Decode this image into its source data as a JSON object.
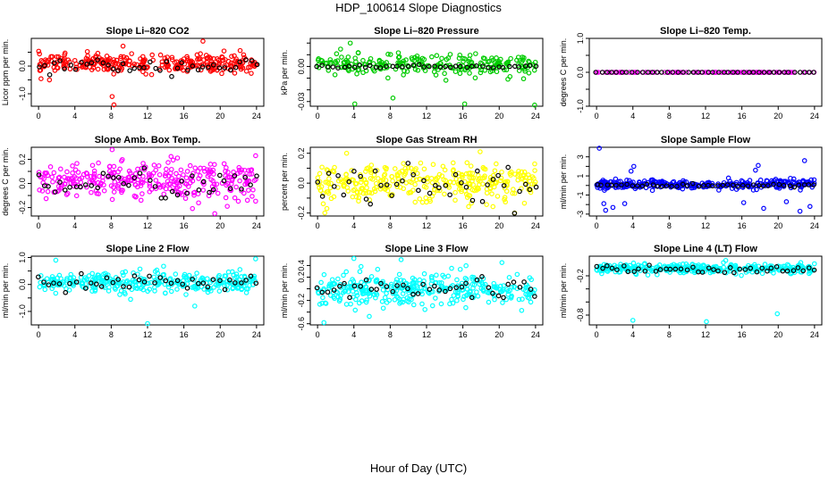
{
  "figure": {
    "title": "HDP_100614  Slope Diagnostics",
    "xlabel": "Hour of Day (UTC)"
  },
  "chart_data": [
    {
      "type": "scatter",
      "title": "Slope Li–820 CO2",
      "ylabel": "Licor ppm per min.",
      "xlim": [
        0,
        24
      ],
      "x_ticks": [
        0,
        4,
        8,
        12,
        16,
        20,
        24
      ],
      "ylim": [
        -1.45,
        1.0
      ],
      "y_ticks": [
        -1.5,
        -1.0,
        -0.5,
        0.0,
        0.5
      ],
      "y_tick_labels": [
        "",
        "-1.0",
        "",
        "0.0",
        ""
      ],
      "series": [
        {
          "name": "all",
          "color": "#ff0000",
          "center": 0.1,
          "spread": 0.16,
          "count": 300,
          "outliers": [
            [
              8.1,
              -1.1
            ],
            [
              8.3,
              -1.4
            ],
            [
              9.3,
              0.72
            ],
            [
              18.1,
              0.9
            ],
            [
              1.2,
              -0.5
            ]
          ]
        },
        {
          "name": "hourly",
          "color": "#000000",
          "center": 0.0,
          "spread": 0.13,
          "count": 42
        }
      ]
    },
    {
      "type": "scatter",
      "title": "Slope Li–820 Pressure",
      "ylabel": "kPa per min.",
      "xlim": [
        0,
        24
      ],
      "x_ticks": [
        0,
        4,
        8,
        12,
        16,
        20,
        24
      ],
      "ylim": [
        -0.034,
        0.024
      ],
      "y_ticks": [
        -0.03,
        -0.02,
        -0.01,
        0.0,
        0.01,
        0.02
      ],
      "y_tick_labels": [
        "-0.03",
        "",
        "",
        "0.00",
        "",
        ""
      ],
      "series": [
        {
          "name": "all",
          "color": "#00cc00",
          "center": 0.001,
          "spread": 0.0045,
          "count": 240,
          "outliers": [
            [
              4.1,
              -0.032
            ],
            [
              8.3,
              -0.027
            ],
            [
              16.2,
              -0.032
            ],
            [
              23.9,
              -0.033
            ],
            [
              3.6,
              0.02
            ]
          ]
        },
        {
          "name": "hourly",
          "color": "#000000",
          "center": 0.0,
          "spread": 0.0007,
          "count": 42
        }
      ]
    },
    {
      "type": "scatter",
      "title": "Slope Li–820 Temp.",
      "ylabel": "degrees C per min.",
      "xlim": [
        0,
        24
      ],
      "x_ticks": [
        0,
        4,
        8,
        12,
        16,
        20,
        24
      ],
      "ylim": [
        -1.0,
        1.0
      ],
      "y_ticks": [
        -1.0,
        -0.5,
        0.0,
        0.5,
        1.0
      ],
      "y_tick_labels": [
        "-1.0",
        "",
        "0.0",
        "",
        "1.0"
      ],
      "series": [
        {
          "name": "all",
          "color": "#ff00ff",
          "center": 0.0,
          "spread": 0.0,
          "count": 110,
          "outliers": []
        },
        {
          "name": "hourly",
          "color": "#000000",
          "center": 0.0,
          "spread": 0.0,
          "count": 44
        }
      ]
    },
    {
      "type": "scatter",
      "title": "Slope Amb. Box Temp.",
      "ylabel": "degrees C per min.",
      "xlim": [
        0,
        24
      ],
      "x_ticks": [
        0,
        4,
        8,
        12,
        16,
        20,
        24
      ],
      "ylim": [
        -0.27,
        0.3
      ],
      "y_ticks": [
        -0.2,
        -0.1,
        0.0,
        0.1,
        0.2
      ],
      "y_tick_labels": [
        "-0.2",
        "",
        "0.0",
        "",
        "0.2"
      ],
      "series": [
        {
          "name": "all",
          "color": "#ff00ff",
          "center": 0.02,
          "spread": 0.08,
          "count": 320,
          "outliers": [
            [
              8.1,
              0.28
            ],
            [
              19.4,
              -0.25
            ],
            [
              23.9,
              0.23
            ]
          ]
        },
        {
          "name": "hourly",
          "color": "#000000",
          "center": 0.0,
          "spread": 0.06,
          "count": 42
        }
      ]
    },
    {
      "type": "scatter",
      "title": "Slope Gas Stream RH",
      "ylabel": "percent per min.",
      "xlim": [
        0,
        24
      ],
      "x_ticks": [
        0,
        4,
        8,
        12,
        16,
        20,
        24
      ],
      "ylim": [
        -0.22,
        0.24
      ],
      "y_ticks": [
        -0.2,
        -0.1,
        0.0,
        0.1,
        0.2
      ],
      "y_tick_labels": [
        "-0.2",
        "",
        "0.0",
        "",
        "0.2"
      ],
      "series": [
        {
          "name": "all",
          "color": "#ffff00",
          "center": 0.0,
          "spread": 0.06,
          "count": 330,
          "outliers": [
            [
              17.9,
              0.21
            ],
            [
              21.7,
              -0.2
            ],
            [
              3.2,
              0.2
            ]
          ]
        },
        {
          "name": "hourly",
          "color": "#000000",
          "center": 0.0,
          "spread": 0.07,
          "count": 42
        }
      ]
    },
    {
      "type": "scatter",
      "title": "Slope Sample Flow",
      "ylabel": "ml/min per min.",
      "xlim": [
        0,
        24
      ],
      "x_ticks": [
        0,
        4,
        8,
        12,
        16,
        20,
        24
      ],
      "ylim": [
        -3.2,
        4.0
      ],
      "y_ticks": [
        -3,
        -2,
        -1,
        0,
        1,
        2,
        3
      ],
      "y_tick_labels": [
        "-3",
        "",
        "-1",
        "",
        "1",
        "",
        "3"
      ],
      "series": [
        {
          "name": "all",
          "color": "#0000ff",
          "center": 0.1,
          "spread": 0.25,
          "count": 300,
          "outliers": [
            [
              0.3,
              3.9
            ],
            [
              4.1,
              2.0
            ],
            [
              3.8,
              1.5
            ],
            [
              1.0,
              -2.6
            ],
            [
              1.8,
              -2.3
            ],
            [
              3.1,
              -1.9
            ],
            [
              17.8,
              2.1
            ],
            [
              18.4,
              -2.4
            ],
            [
              20.9,
              -1.7
            ],
            [
              22.9,
              2.6
            ],
            [
              22.4,
              -2.7
            ],
            [
              23.5,
              -2.2
            ],
            [
              16.2,
              -1.8
            ],
            [
              17.5,
              1.6
            ],
            [
              0.8,
              -1.9
            ]
          ]
        },
        {
          "name": "hourly",
          "color": "#000000",
          "center": 0.0,
          "spread": 0.08,
          "count": 44
        }
      ]
    },
    {
      "type": "scatter",
      "title": "Slope Line 2 Flow",
      "ylabel": "ml/min per min.",
      "xlim": [
        0,
        24
      ],
      "x_ticks": [
        0,
        4,
        8,
        12,
        16,
        20,
        24
      ],
      "ylim": [
        -1.5,
        1.05
      ],
      "y_ticks": [
        -1.0,
        -0.5,
        0.0,
        0.5,
        1.0
      ],
      "y_tick_labels": [
        "-1.0",
        "",
        "0.0",
        "",
        "1.0"
      ],
      "series": [
        {
          "name": "all",
          "color": "#00ffff",
          "center": 0.05,
          "spread": 0.2,
          "count": 320,
          "outliers": [
            [
              12.0,
              -1.45
            ],
            [
              1.9,
              0.9
            ],
            [
              17.2,
              -0.8
            ],
            [
              23.9,
              0.95
            ]
          ]
        },
        {
          "name": "hourly",
          "color": "#000000",
          "center": 0.1,
          "spread": 0.12,
          "count": 42
        }
      ]
    },
    {
      "type": "scatter",
      "title": "Slope Line 3 Flow",
      "ylabel": "ml/min per min.",
      "xlim": [
        0,
        24
      ],
      "x_ticks": [
        0,
        4,
        8,
        12,
        16,
        20,
        24
      ],
      "ylim": [
        -0.62,
        0.56
      ],
      "y_ticks": [
        -0.6,
        -0.4,
        -0.2,
        0.0,
        0.2,
        0.4
      ],
      "y_tick_labels": [
        "-0.6",
        "",
        "-0.2",
        "",
        "0.2",
        "0.4"
      ],
      "series": [
        {
          "name": "all",
          "color": "#00ffff",
          "center": 0.0,
          "spread": 0.14,
          "count": 340,
          "outliers": [
            [
              0.7,
              -0.58
            ],
            [
              4.0,
              0.52
            ],
            [
              9.2,
              0.5
            ],
            [
              20.3,
              0.45
            ]
          ]
        },
        {
          "name": "hourly",
          "color": "#000000",
          "center": 0.0,
          "spread": 0.1,
          "count": 42
        }
      ]
    },
    {
      "type": "scatter",
      "title": "Slope Line 4 (LT) Flow",
      "ylabel": "ml/min per min.",
      "xlim": [
        0,
        24
      ],
      "x_ticks": [
        0,
        4,
        8,
        12,
        16,
        20,
        24
      ],
      "ylim": [
        -0.95,
        0.1
      ],
      "y_ticks": [
        -0.8,
        -0.6,
        -0.4,
        -0.2
      ],
      "y_tick_labels": [
        "-0.8",
        "",
        "",
        "-0.2"
      ],
      "series": [
        {
          "name": "all",
          "color": "#00ffff",
          "center": -0.09,
          "spread": 0.035,
          "count": 320,
          "outliers": [
            [
              4.0,
              -0.88
            ],
            [
              12.1,
              -0.9
            ],
            [
              19.9,
              -0.78
            ]
          ]
        },
        {
          "name": "hourly",
          "color": "#000000",
          "center": -0.1,
          "spread": 0.03,
          "count": 42
        }
      ]
    }
  ]
}
